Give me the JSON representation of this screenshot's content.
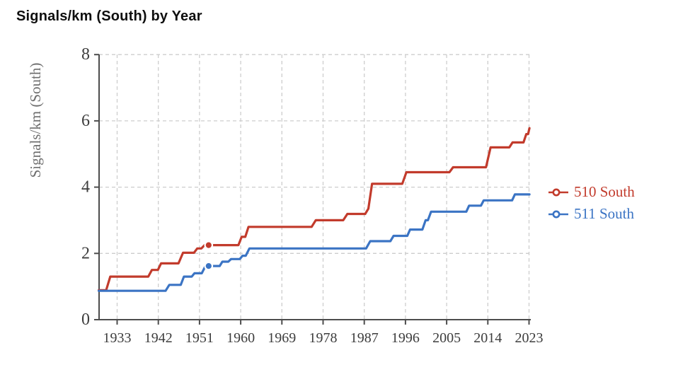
{
  "title": "Signals/km (South) by Year",
  "colors": {
    "series_510_south": "#c23b2c",
    "series_511_south": "#3b74c4",
    "grid": "#cdcdcd",
    "axis": "#4d4d4d",
    "tick_label": "#3d3d3d",
    "axis_title": "#6e6e6e",
    "title": "#0f0f0f",
    "background": "#ffffff"
  },
  "legend": {
    "items": [
      {
        "label": "510 South",
        "color": "#c23b2c"
      },
      {
        "label": "511 South",
        "color": "#3b74c4"
      }
    ]
  },
  "chart_data": {
    "type": "line",
    "subtype": "step",
    "title": "Signals/km (South) by Year",
    "xlabel": "",
    "ylabel": "Signals/km (South)",
    "xlim": [
      1929,
      2023.6
    ],
    "ylim": [
      0,
      8
    ],
    "x_ticks": [
      1933,
      1942,
      1951,
      1960,
      1969,
      1978,
      1987,
      1996,
      2005,
      2014,
      2023
    ],
    "y_ticks": [
      0,
      2,
      4,
      6,
      8
    ],
    "grid": true,
    "grid_style": "dashed",
    "legend_position": "right",
    "series": [
      {
        "name": "510 South",
        "color": "#c23b2c",
        "points": [
          [
            1929,
            0.89
          ],
          [
            1930.6,
            0.89
          ],
          [
            1931.5,
            1.3
          ],
          [
            1939.8,
            1.3
          ],
          [
            1940.6,
            1.5
          ],
          [
            1941.9,
            1.5
          ],
          [
            1942.6,
            1.7
          ],
          [
            1946.4,
            1.7
          ],
          [
            1947.4,
            2.02
          ],
          [
            1949.8,
            2.02
          ],
          [
            1950.5,
            2.15
          ],
          [
            1951.4,
            2.15
          ],
          [
            1952.1,
            2.25
          ],
          [
            1959.5,
            2.25
          ],
          [
            1960.2,
            2.5
          ],
          [
            1961.0,
            2.5
          ],
          [
            1961.7,
            2.8
          ],
          [
            1975.5,
            2.8
          ],
          [
            1976.4,
            3.0
          ],
          [
            1982.4,
            3.0
          ],
          [
            1983.3,
            3.19
          ],
          [
            1987.2,
            3.19
          ],
          [
            1987.9,
            3.35
          ],
          [
            1988.7,
            4.1
          ],
          [
            1995.3,
            4.1
          ],
          [
            1996.2,
            4.45
          ],
          [
            2005.6,
            4.45
          ],
          [
            2006.4,
            4.6
          ],
          [
            2013.6,
            4.6
          ],
          [
            2014.6,
            5.2
          ],
          [
            2018.7,
            5.2
          ],
          [
            2019.4,
            5.35
          ],
          [
            2021.8,
            5.35
          ],
          [
            2022.4,
            5.6
          ],
          [
            2022.8,
            5.6
          ],
          [
            2023.1,
            5.78
          ]
        ],
        "highlight_point": [
          1953,
          2.25
        ]
      },
      {
        "name": "511 South",
        "color": "#3b74c4",
        "points": [
          [
            1929,
            0.87
          ],
          [
            1943.6,
            0.87
          ],
          [
            1944.4,
            1.05
          ],
          [
            1946.9,
            1.05
          ],
          [
            1947.6,
            1.3
          ],
          [
            1949.3,
            1.3
          ],
          [
            1949.9,
            1.4
          ],
          [
            1951.5,
            1.4
          ],
          [
            1952.3,
            1.62
          ],
          [
            1955.4,
            1.62
          ],
          [
            1956.0,
            1.75
          ],
          [
            1957.3,
            1.75
          ],
          [
            1957.9,
            1.83
          ],
          [
            1959.8,
            1.83
          ],
          [
            1960.4,
            1.93
          ],
          [
            1961.1,
            1.93
          ],
          [
            1961.9,
            2.15
          ],
          [
            1987.4,
            2.15
          ],
          [
            1988.3,
            2.37
          ],
          [
            1992.7,
            2.37
          ],
          [
            1993.4,
            2.53
          ],
          [
            1996.4,
            2.53
          ],
          [
            1997.0,
            2.72
          ],
          [
            1999.7,
            2.72
          ],
          [
            2000.4,
            3.0
          ],
          [
            2000.9,
            3.0
          ],
          [
            2001.6,
            3.26
          ],
          [
            2009.3,
            3.26
          ],
          [
            2009.9,
            3.44
          ],
          [
            2012.5,
            3.44
          ],
          [
            2013.1,
            3.6
          ],
          [
            2019.3,
            3.6
          ],
          [
            2019.9,
            3.78
          ],
          [
            2023.1,
            3.78
          ]
        ],
        "highlight_point": [
          1953,
          1.62
        ]
      }
    ]
  }
}
